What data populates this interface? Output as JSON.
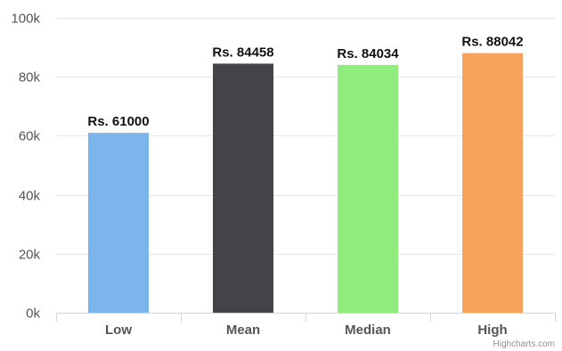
{
  "chart_data": {
    "type": "bar",
    "categories": [
      "Low",
      "Mean",
      "Median",
      "High"
    ],
    "values": [
      61000,
      84458,
      84034,
      88042
    ],
    "data_labels": [
      "Rs. 61000",
      "Rs. 84458",
      "Rs. 84034",
      "Rs. 88042"
    ],
    "colors": [
      "#7cb5ec",
      "#434348",
      "#90ed7d",
      "#f7a35c"
    ],
    "ylim": [
      0,
      100000
    ],
    "yticks": [
      0,
      20000,
      40000,
      60000,
      80000,
      100000
    ],
    "ytick_labels": [
      "0k",
      "20k",
      "40k",
      "60k",
      "80k",
      "100k"
    ],
    "grid": true,
    "legend": "none",
    "title": "",
    "xlabel": "",
    "ylabel": ""
  },
  "credit": {
    "text": "Highcharts.com"
  }
}
